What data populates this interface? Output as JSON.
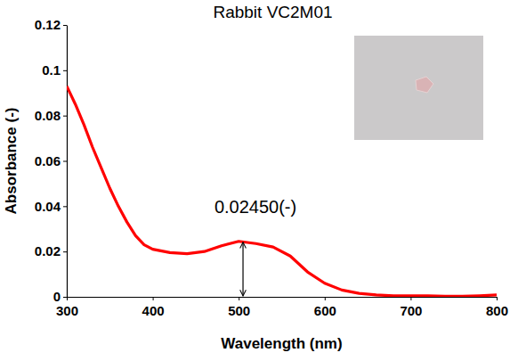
{
  "chart_data": {
    "type": "line",
    "title": "Rabbit VC2M01",
    "x_label": "Wavelength (nm)",
    "y_label": "Absorbance (-)",
    "x": [
      300,
      310,
      320,
      330,
      340,
      350,
      360,
      370,
      380,
      390,
      400,
      420,
      440,
      460,
      480,
      500,
      520,
      540,
      560,
      580,
      600,
      620,
      640,
      660,
      680,
      700,
      720,
      740,
      760,
      780,
      800
    ],
    "values": [
      0.093,
      0.085,
      0.076,
      0.066,
      0.057,
      0.048,
      0.04,
      0.033,
      0.027,
      0.023,
      0.021,
      0.0195,
      0.019,
      0.02,
      0.0225,
      0.0245,
      0.0235,
      0.022,
      0.018,
      0.011,
      0.006,
      0.003,
      0.0015,
      0.0008,
      0.0005,
      0.0005,
      0.0005,
      0.0003,
      0.0003,
      0.0005,
      0.0008
    ],
    "color": "#ff0000",
    "xlim": [
      300,
      800
    ],
    "xticks": [
      300,
      400,
      500,
      600,
      700,
      800
    ],
    "ylim": [
      0,
      0.12
    ],
    "yticks": [
      0,
      0.02,
      0.04,
      0.06,
      0.08,
      0.1,
      0.12
    ],
    "grid": false,
    "annotations": [
      {
        "text": "0.02450(-)",
        "x": 505,
        "y": 0.0245
      }
    ]
  }
}
